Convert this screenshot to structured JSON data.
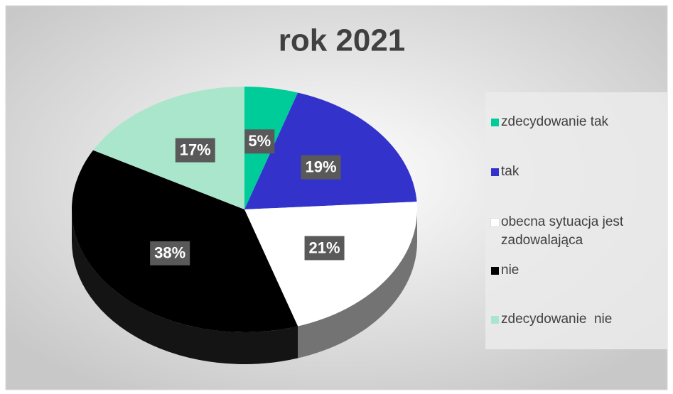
{
  "chart_data": {
    "type": "pie",
    "title": "rok 2021",
    "categories": [
      "zdecydowanie tak",
      "tak",
      "obecna sytuacja jest zadowalająca",
      "nie",
      "zdecydowanie  nie"
    ],
    "values": [
      5,
      19,
      21,
      38,
      17
    ],
    "value_labels": [
      "5%",
      "19%",
      "21%",
      "38%",
      "17%"
    ],
    "colors": [
      "#00cc99",
      "#3333cc",
      "#ffffff",
      "#000000",
      "#aae6cc"
    ]
  }
}
